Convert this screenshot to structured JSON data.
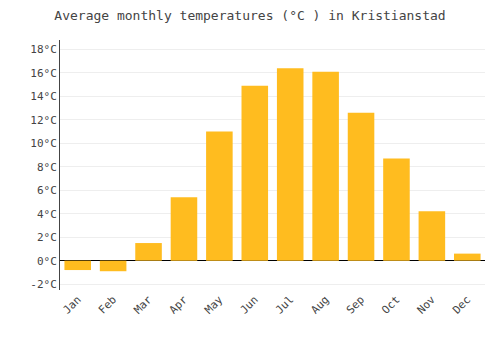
{
  "chart_data": {
    "type": "bar",
    "title": "Average monthly temperatures (°C ) in Kristianstad",
    "categories": [
      "Jan",
      "Feb",
      "Mar",
      "Apr",
      "May",
      "Jun",
      "Jul",
      "Aug",
      "Sep",
      "Oct",
      "Nov",
      "Dec"
    ],
    "values": [
      -0.8,
      -0.9,
      1.5,
      5.4,
      11.0,
      14.9,
      16.4,
      16.1,
      12.6,
      8.7,
      4.2,
      0.6
    ],
    "color": "#FFBC1F",
    "ylim": [
      -2.5,
      18.8
    ],
    "yticks": [
      {
        "value": -2,
        "label": "-2°C"
      },
      {
        "value": 0,
        "label": "0°C"
      },
      {
        "value": 2,
        "label": "2°C"
      },
      {
        "value": 4,
        "label": "4°C"
      },
      {
        "value": 6,
        "label": "6°C"
      },
      {
        "value": 8,
        "label": "8°C"
      },
      {
        "value": 10,
        "label": "10°C"
      },
      {
        "value": 12,
        "label": "12°C"
      },
      {
        "value": 14,
        "label": "14°C"
      },
      {
        "value": 16,
        "label": "16°C"
      },
      {
        "value": 18,
        "label": "18°C"
      }
    ],
    "grid": true
  }
}
